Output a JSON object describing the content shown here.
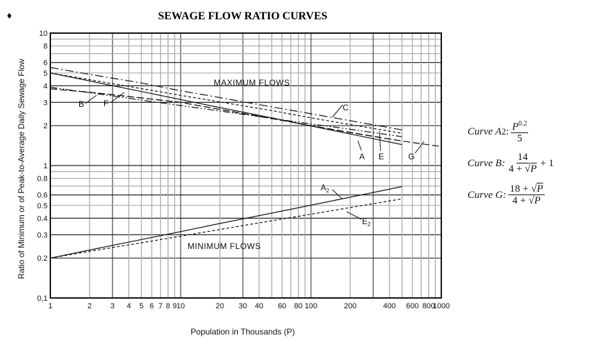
{
  "chart_data": {
    "type": "line",
    "title": "SEWAGE FLOW RATIO CURVES",
    "xlabel": "Population in Thousands (P)",
    "ylabel": "Ratio of Minimum or of Peak-to-Average Daily Sewage Flow",
    "x_scale": "log",
    "y_scale": "log",
    "xlim": [
      1,
      1000
    ],
    "ylim": [
      0.1,
      10
    ],
    "grid": true,
    "x_ticks": [
      "1",
      "2",
      "3",
      "4",
      "5",
      "6",
      "7",
      "8",
      "9",
      "10",
      "20",
      "30",
      "40",
      "60",
      "80",
      "100",
      "200",
      "400",
      "600",
      "800",
      "1000"
    ],
    "x_tick_values": [
      1,
      2,
      3,
      4,
      5,
      6,
      7,
      8,
      9,
      10,
      20,
      30,
      40,
      60,
      80,
      100,
      200,
      400,
      600,
      800,
      1000
    ],
    "y_ticks": [
      "10",
      "8",
      "6",
      "5",
      "4",
      "3",
      "2",
      "1",
      "0.8",
      "0.6",
      "0.5",
      "0.4",
      "0.3",
      "0.2",
      "0,1"
    ],
    "y_tick_values": [
      10,
      8,
      6,
      5,
      4,
      3,
      2,
      1,
      0.8,
      0.6,
      0.5,
      0.4,
      0.3,
      0.2,
      0.1
    ],
    "annotations": {
      "max": "MAXIMUM FLOWS",
      "min": "MINIMUM FLOWS"
    },
    "series": [
      {
        "name": "A",
        "style": "solid",
        "x": [
          1,
          2,
          5,
          10,
          20,
          50,
          100,
          200,
          500
        ],
        "y": [
          5.0,
          4.35,
          3.62,
          3.15,
          2.74,
          2.29,
          1.99,
          1.73,
          1.44
        ]
      },
      {
        "name": "B",
        "style": "longdash",
        "x": [
          1,
          2,
          5,
          10,
          20,
          50,
          100,
          200,
          500
        ],
        "y": [
          3.8,
          3.58,
          3.24,
          3.0,
          2.65,
          2.27,
          2.0,
          1.78,
          1.53
        ]
      },
      {
        "name": "C",
        "style": "dashdot",
        "x": [
          1,
          2,
          5,
          10,
          20,
          50,
          100,
          200,
          500
        ],
        "y": [
          5.5,
          4.88,
          4.2,
          3.67,
          3.26,
          2.77,
          2.46,
          2.18,
          1.86
        ]
      },
      {
        "name": "E",
        "style": "shortdash",
        "x": [
          1,
          2,
          5,
          10,
          20,
          50,
          100,
          200,
          500
        ],
        "y": [
          5.0,
          4.45,
          3.81,
          3.39,
          3.02,
          2.6,
          2.29,
          2.04,
          1.75
        ]
      },
      {
        "name": "F",
        "style": "dashdotdot",
        "x": [
          1,
          2,
          5,
          10,
          20,
          50,
          100,
          200,
          500
        ],
        "y": [
          3.9,
          3.55,
          3.12,
          2.84,
          2.58,
          2.27,
          2.06,
          1.88,
          1.65
        ]
      },
      {
        "name": "G",
        "style": "longdash",
        "x": [
          1,
          2,
          5,
          10,
          20,
          50,
          100,
          200,
          500,
          1000
        ],
        "y": [
          3.8,
          3.58,
          3.24,
          3.0,
          2.65,
          2.26,
          2.0,
          1.77,
          1.53,
          1.39
        ]
      },
      {
        "name": "A2",
        "style": "solid",
        "x": [
          1,
          2,
          5,
          10,
          20,
          50,
          100,
          200,
          500
        ],
        "y": [
          0.2,
          0.23,
          0.276,
          0.317,
          0.365,
          0.437,
          0.502,
          0.577,
          0.694
        ]
      },
      {
        "name": "E2",
        "style": "shortdash",
        "x": [
          1,
          2,
          5,
          10,
          20,
          50,
          100,
          200,
          500
        ],
        "y": [
          0.2,
          0.225,
          0.261,
          0.293,
          0.329,
          0.383,
          0.429,
          0.482,
          0.56
        ]
      }
    ],
    "curve_labels": {
      "A": "A",
      "B": "B",
      "C": "C",
      "E": "E",
      "F": "F",
      "G": "G",
      "A2": "A",
      "A2_sub": "2",
      "E2": "E",
      "E2_sub": "2"
    }
  },
  "bullet": "♦",
  "formulas": {
    "a2": {
      "label": "Curve A",
      "sub": "2",
      "num_base": "P",
      "num_exp": "0.2",
      "den": "5"
    },
    "b": {
      "label": "Curve B:",
      "num": "14",
      "den_a": "4 + ",
      "den_rad": "P",
      "tail": "+ 1"
    },
    "g": {
      "label": "Curve G:",
      "num_a": "18 + ",
      "num_rad": "P",
      "den_a": "4 + ",
      "den_rad": "P"
    },
    "sqrt": "√",
    "colon": ":"
  }
}
